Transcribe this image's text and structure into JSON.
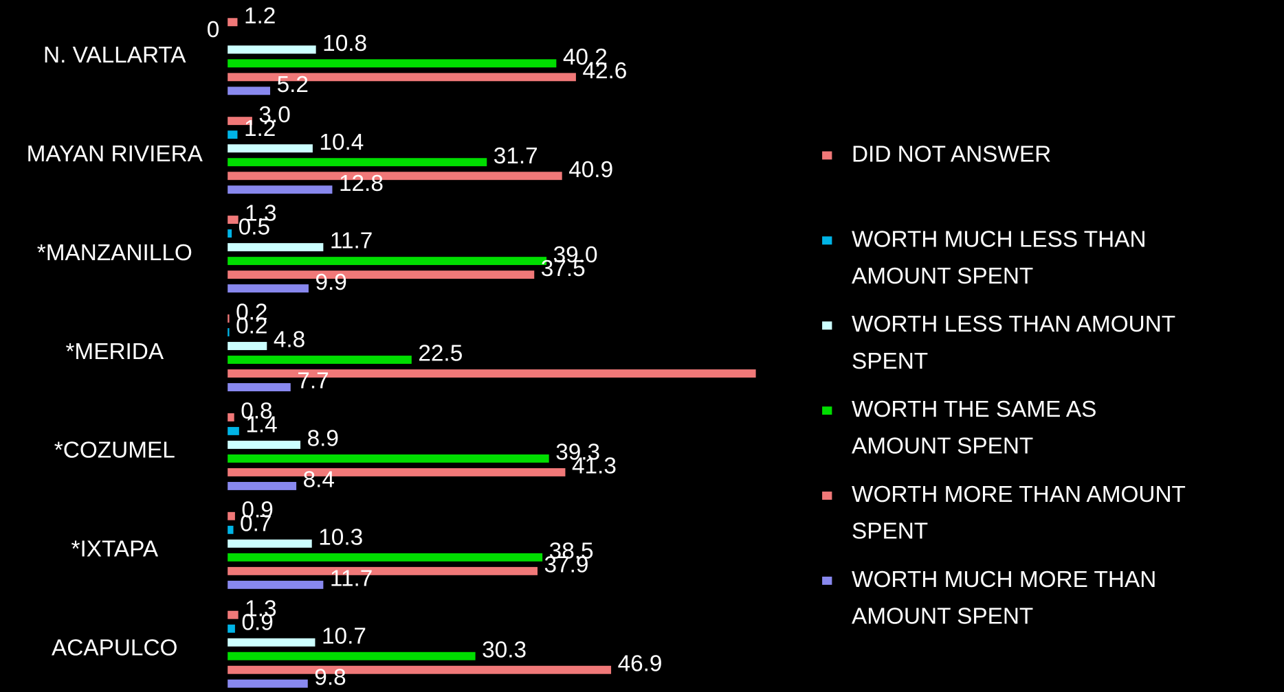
{
  "chart_data": {
    "type": "bar",
    "orientation": "horizontal",
    "categories": [
      "N. VALLARTA",
      "MAYAN RIVIERA",
      "*MANZANILLO",
      "*MERIDA",
      "*COZUMEL",
      "*IXTAPA",
      "ACAPULCO"
    ],
    "series": [
      {
        "name": "DID NOT ANSWER",
        "color": "#f07878",
        "values": [
          1.2,
          3.0,
          1.3,
          0.2,
          0.8,
          0.9,
          1.3
        ],
        "value_labels": [
          "1.2",
          "3.0",
          "1.3",
          "0.2",
          "0.8",
          "0.9",
          "1.3"
        ]
      },
      {
        "name": "WORTH MUCH LESS THAN AMOUNT SPENT",
        "color": "#00b4e6",
        "values": [
          0,
          1.2,
          0.5,
          0.2,
          1.4,
          0.7,
          0.9
        ],
        "value_labels": [
          "0",
          "1.2",
          "0.5",
          "0.2",
          "1.4",
          "0.7",
          "0.9"
        ]
      },
      {
        "name": "WORTH LESS THAN AMOUNT SPENT",
        "color": "#ccffff",
        "values": [
          10.8,
          10.4,
          11.7,
          4.8,
          8.9,
          10.3,
          10.7
        ],
        "value_labels": [
          "10.8",
          "10.4",
          "11.7",
          "4.8",
          "8.9",
          "10.3",
          "10.7"
        ]
      },
      {
        "name": "WORTH THE SAME AS AMOUNT SPENT",
        "color": "#00dd00",
        "values": [
          40.2,
          31.7,
          39.0,
          22.5,
          39.3,
          38.5,
          30.3
        ],
        "value_labels": [
          "40.2",
          "31.7",
          "39.0",
          "22.5",
          "39.3",
          "38.5",
          "30.3"
        ]
      },
      {
        "name": "WORTH MORE THAN AMOUNT SPENT",
        "color": "#f07878",
        "values": [
          42.6,
          40.9,
          37.5,
          64.6,
          41.3,
          37.9,
          46.9
        ],
        "value_labels": [
          "42.6",
          "40.9",
          "37.5",
          null,
          "41.3",
          "37.9",
          "46.9"
        ]
      },
      {
        "name": "WORTH MUCH MORE THAN AMOUNT SPENT",
        "color": "#8888ee",
        "values": [
          5.2,
          12.8,
          9.9,
          7.7,
          8.4,
          11.7,
          9.8
        ],
        "value_labels": [
          "5.2",
          "12.8",
          "9.9",
          "7.7",
          "8.4",
          "11.7",
          "9.8"
        ]
      }
    ],
    "xlim": [
      0,
      65
    ],
    "legend": "right"
  }
}
